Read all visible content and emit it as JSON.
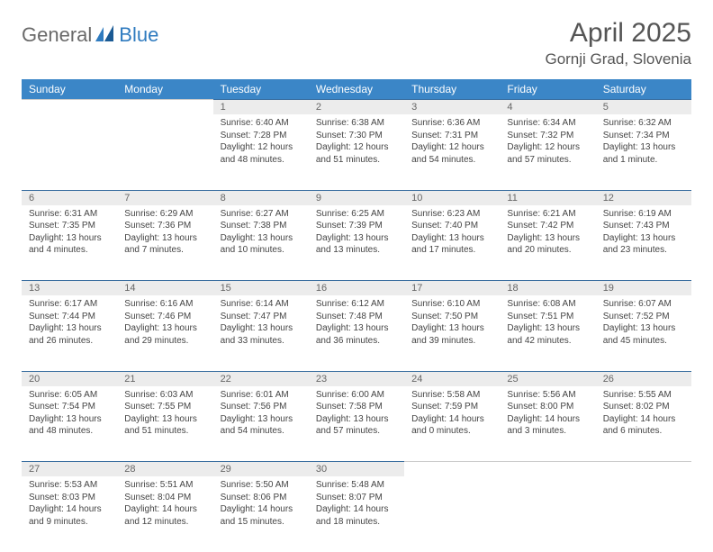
{
  "logo": {
    "text1": "General",
    "text2": "Blue"
  },
  "title": "April 2025",
  "location": "Gornji Grad, Slovenia",
  "colors": {
    "header_bg": "#3b86c7",
    "header_text": "#ffffff",
    "daynum_bg": "#ececec",
    "daynum_border": "#3b6fa0",
    "body_text": "#444444",
    "title_text": "#555555",
    "logo_gray": "#6a6a6a",
    "logo_blue": "#2f7bbf"
  },
  "weekdays": [
    "Sunday",
    "Monday",
    "Tuesday",
    "Wednesday",
    "Thursday",
    "Friday",
    "Saturday"
  ],
  "weeks": [
    [
      null,
      null,
      {
        "n": "1",
        "sr": "Sunrise: 6:40 AM",
        "ss": "Sunset: 7:28 PM",
        "dl": "Daylight: 12 hours and 48 minutes."
      },
      {
        "n": "2",
        "sr": "Sunrise: 6:38 AM",
        "ss": "Sunset: 7:30 PM",
        "dl": "Daylight: 12 hours and 51 minutes."
      },
      {
        "n": "3",
        "sr": "Sunrise: 6:36 AM",
        "ss": "Sunset: 7:31 PM",
        "dl": "Daylight: 12 hours and 54 minutes."
      },
      {
        "n": "4",
        "sr": "Sunrise: 6:34 AM",
        "ss": "Sunset: 7:32 PM",
        "dl": "Daylight: 12 hours and 57 minutes."
      },
      {
        "n": "5",
        "sr": "Sunrise: 6:32 AM",
        "ss": "Sunset: 7:34 PM",
        "dl": "Daylight: 13 hours and 1 minute."
      }
    ],
    [
      {
        "n": "6",
        "sr": "Sunrise: 6:31 AM",
        "ss": "Sunset: 7:35 PM",
        "dl": "Daylight: 13 hours and 4 minutes."
      },
      {
        "n": "7",
        "sr": "Sunrise: 6:29 AM",
        "ss": "Sunset: 7:36 PM",
        "dl": "Daylight: 13 hours and 7 minutes."
      },
      {
        "n": "8",
        "sr": "Sunrise: 6:27 AM",
        "ss": "Sunset: 7:38 PM",
        "dl": "Daylight: 13 hours and 10 minutes."
      },
      {
        "n": "9",
        "sr": "Sunrise: 6:25 AM",
        "ss": "Sunset: 7:39 PM",
        "dl": "Daylight: 13 hours and 13 minutes."
      },
      {
        "n": "10",
        "sr": "Sunrise: 6:23 AM",
        "ss": "Sunset: 7:40 PM",
        "dl": "Daylight: 13 hours and 17 minutes."
      },
      {
        "n": "11",
        "sr": "Sunrise: 6:21 AM",
        "ss": "Sunset: 7:42 PM",
        "dl": "Daylight: 13 hours and 20 minutes."
      },
      {
        "n": "12",
        "sr": "Sunrise: 6:19 AM",
        "ss": "Sunset: 7:43 PM",
        "dl": "Daylight: 13 hours and 23 minutes."
      }
    ],
    [
      {
        "n": "13",
        "sr": "Sunrise: 6:17 AM",
        "ss": "Sunset: 7:44 PM",
        "dl": "Daylight: 13 hours and 26 minutes."
      },
      {
        "n": "14",
        "sr": "Sunrise: 6:16 AM",
        "ss": "Sunset: 7:46 PM",
        "dl": "Daylight: 13 hours and 29 minutes."
      },
      {
        "n": "15",
        "sr": "Sunrise: 6:14 AM",
        "ss": "Sunset: 7:47 PM",
        "dl": "Daylight: 13 hours and 33 minutes."
      },
      {
        "n": "16",
        "sr": "Sunrise: 6:12 AM",
        "ss": "Sunset: 7:48 PM",
        "dl": "Daylight: 13 hours and 36 minutes."
      },
      {
        "n": "17",
        "sr": "Sunrise: 6:10 AM",
        "ss": "Sunset: 7:50 PM",
        "dl": "Daylight: 13 hours and 39 minutes."
      },
      {
        "n": "18",
        "sr": "Sunrise: 6:08 AM",
        "ss": "Sunset: 7:51 PM",
        "dl": "Daylight: 13 hours and 42 minutes."
      },
      {
        "n": "19",
        "sr": "Sunrise: 6:07 AM",
        "ss": "Sunset: 7:52 PM",
        "dl": "Daylight: 13 hours and 45 minutes."
      }
    ],
    [
      {
        "n": "20",
        "sr": "Sunrise: 6:05 AM",
        "ss": "Sunset: 7:54 PM",
        "dl": "Daylight: 13 hours and 48 minutes."
      },
      {
        "n": "21",
        "sr": "Sunrise: 6:03 AM",
        "ss": "Sunset: 7:55 PM",
        "dl": "Daylight: 13 hours and 51 minutes."
      },
      {
        "n": "22",
        "sr": "Sunrise: 6:01 AM",
        "ss": "Sunset: 7:56 PM",
        "dl": "Daylight: 13 hours and 54 minutes."
      },
      {
        "n": "23",
        "sr": "Sunrise: 6:00 AM",
        "ss": "Sunset: 7:58 PM",
        "dl": "Daylight: 13 hours and 57 minutes."
      },
      {
        "n": "24",
        "sr": "Sunrise: 5:58 AM",
        "ss": "Sunset: 7:59 PM",
        "dl": "Daylight: 14 hours and 0 minutes."
      },
      {
        "n": "25",
        "sr": "Sunrise: 5:56 AM",
        "ss": "Sunset: 8:00 PM",
        "dl": "Daylight: 14 hours and 3 minutes."
      },
      {
        "n": "26",
        "sr": "Sunrise: 5:55 AM",
        "ss": "Sunset: 8:02 PM",
        "dl": "Daylight: 14 hours and 6 minutes."
      }
    ],
    [
      {
        "n": "27",
        "sr": "Sunrise: 5:53 AM",
        "ss": "Sunset: 8:03 PM",
        "dl": "Daylight: 14 hours and 9 minutes."
      },
      {
        "n": "28",
        "sr": "Sunrise: 5:51 AM",
        "ss": "Sunset: 8:04 PM",
        "dl": "Daylight: 14 hours and 12 minutes."
      },
      {
        "n": "29",
        "sr": "Sunrise: 5:50 AM",
        "ss": "Sunset: 8:06 PM",
        "dl": "Daylight: 14 hours and 15 minutes."
      },
      {
        "n": "30",
        "sr": "Sunrise: 5:48 AM",
        "ss": "Sunset: 8:07 PM",
        "dl": "Daylight: 14 hours and 18 minutes."
      },
      null,
      null,
      null
    ]
  ]
}
